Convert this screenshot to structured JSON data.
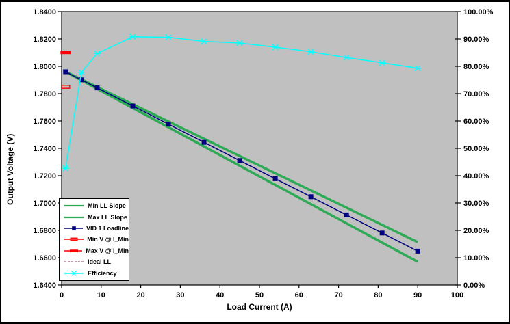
{
  "window": {
    "background": "#FFFFFF",
    "border_color": "#000000"
  },
  "chart_data": {
    "type": "line",
    "title": "",
    "xlabel": "Load Current (A)",
    "ylabel": "Output Voltage (V)",
    "y2label": "",
    "plot_bg": "#C0C0C0",
    "grid": "off",
    "legend_position": "bottom-left-inside",
    "x_axis": {
      "min": 0,
      "max": 100,
      "tick_values": [
        0,
        10,
        20,
        30,
        40,
        50,
        60,
        70,
        80,
        90,
        100
      ],
      "tick_labels": [
        "0",
        "10",
        "20",
        "30",
        "40",
        "50",
        "60",
        "70",
        "80",
        "90",
        "100"
      ]
    },
    "y_axis_left": {
      "min": 1.64,
      "max": 1.84,
      "tick_values": [
        1.84,
        1.82,
        1.8,
        1.78,
        1.76,
        1.74,
        1.72,
        1.7,
        1.68,
        1.66,
        1.64
      ],
      "tick_labels": [
        "1.8400",
        "1.8200",
        "1.8000",
        "1.7800",
        "1.7600",
        "1.7400",
        "1.7200",
        "1.7000",
        "1.6800",
        "1.6600",
        "1.6400"
      ]
    },
    "y_axis_right": {
      "min": 0,
      "max": 100,
      "tick_values": [
        100,
        90,
        80,
        70,
        60,
        50,
        40,
        30,
        20,
        10,
        0
      ],
      "tick_labels": [
        "100.00%",
        "90.00%",
        "80.00%",
        "70.00%",
        "60.00%",
        "50.00%",
        "40.00%",
        "30.00%",
        "20.00%",
        "10.00%",
        "0.00%"
      ]
    },
    "series": [
      {
        "name": "Min LL Slope",
        "axis": "left",
        "color": "#2DAA55",
        "width": 3.5,
        "marker": "none",
        "dash": "",
        "draw_order": 1,
        "x": [
          1,
          90
        ],
        "y": [
          1.796,
          1.6714
        ]
      },
      {
        "name": "Max LL Slope",
        "axis": "left",
        "color": "#2DAA55",
        "width": 3.5,
        "marker": "none",
        "dash": "",
        "draw_order": 2,
        "x": [
          1,
          90
        ],
        "y": [
          1.796,
          1.657
        ]
      },
      {
        "name": "VID 1 Loadline",
        "axis": "left",
        "color": "#000080",
        "width": 1.5,
        "marker": "square",
        "dash": "",
        "draw_order": 4,
        "x": [
          1,
          5,
          9,
          18,
          27,
          36,
          45,
          54,
          63,
          72,
          81,
          90
        ],
        "y": [
          1.796,
          1.7901,
          1.7842,
          1.771,
          1.7577,
          1.7444,
          1.7311,
          1.7178,
          1.7046,
          1.6913,
          1.6781,
          1.6648
        ]
      },
      {
        "name": "Min V @ I_Min",
        "axis": "left",
        "color": "#FF0000",
        "width": 1.5,
        "marker": "dash-hollow",
        "dash": "",
        "draw_order": 5,
        "x": [
          1
        ],
        "y": [
          1.785
        ]
      },
      {
        "name": "Max V @ I_Min",
        "axis": "left",
        "color": "#FF0000",
        "width": 1.5,
        "marker": "dash",
        "dash": "",
        "draw_order": 6,
        "x": [
          1
        ],
        "y": [
          1.81
        ]
      },
      {
        "name": "Ideal LL",
        "axis": "left",
        "color": "#993366",
        "width": 1,
        "marker": "none",
        "dash": "3,2",
        "draw_order": 3,
        "x": [
          1,
          90
        ],
        "y": [
          1.796,
          1.6648
        ]
      },
      {
        "name": "Efficiency",
        "axis": "right",
        "color": "#00FFFF",
        "width": 1.5,
        "marker": "x",
        "dash": "",
        "draw_order": 7,
        "x": [
          1,
          5,
          9,
          18,
          27,
          36,
          45,
          54,
          63,
          72,
          81,
          90
        ],
        "y": [
          42.7,
          77.8,
          84.7,
          90.8,
          90.6,
          89.1,
          88.5,
          87.0,
          85.3,
          83.2,
          81.3,
          79.3
        ]
      }
    ]
  }
}
